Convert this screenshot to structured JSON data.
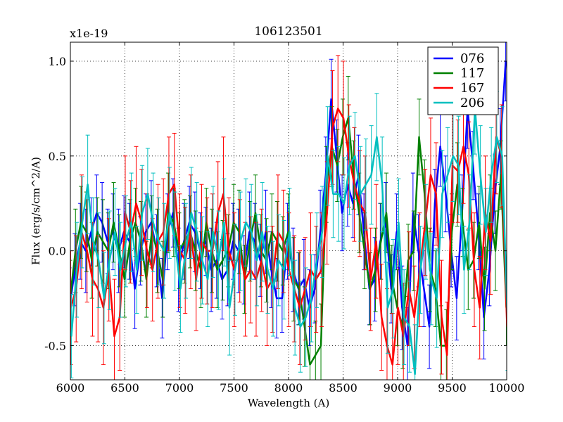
{
  "chart_data": {
    "type": "line",
    "title": "106123501",
    "xlabel": "Wavelength (A)",
    "ylabel": "Flux (erg/s/cm^2/A)",
    "y_multiplier": "x1e-19",
    "xlim": [
      6000,
      10000
    ],
    "ylim": [
      -0.68,
      1.1
    ],
    "x_ticks": [
      6000,
      6500,
      7000,
      7500,
      8000,
      8500,
      9000,
      9500,
      10000
    ],
    "x_tick_labels": [
      "6000",
      "6500",
      "7000",
      "7500",
      "8000",
      "8500",
      "9000",
      "9500",
      "10000"
    ],
    "y_ticks": [
      -0.5,
      0.0,
      0.5,
      1.0
    ],
    "y_tick_labels": [
      "-0.5",
      "0.0",
      "0.5",
      "1.0"
    ],
    "grid": true,
    "legend_position": "top-right",
    "x_start": 6000,
    "x_step": 50,
    "series": [
      {
        "name": "076",
        "color": "#0000ff",
        "errors": [
          0.21,
          0.19,
          0.2,
          0.22,
          0.18,
          0.2,
          0.21,
          0.17,
          0.2,
          0.22,
          0.19,
          0.2,
          0.21,
          0.18,
          0.2,
          0.22,
          0.19,
          0.21,
          0.2,
          0.18,
          0.22,
          0.2,
          0.19,
          0.21,
          0.2,
          0.18,
          0.22,
          0.2,
          0.21,
          0.19,
          0.2,
          0.22,
          0.18,
          0.21,
          0.2,
          0.19,
          0.22,
          0.2,
          0.21,
          0.18,
          0.2,
          0.22,
          0.19,
          0.21,
          0.2,
          0.18,
          0.22,
          0.2,
          0.21,
          0.19,
          0.2,
          0.22,
          0.18,
          0.21,
          0.2,
          0.19,
          0.22,
          0.2,
          0.21,
          0.18,
          0.2,
          0.22,
          0.2,
          0.21,
          0.19,
          0.2,
          0.22,
          0.18,
          0.21,
          0.2,
          0.19,
          0.22,
          0.2,
          0.21,
          0.18,
          0.2,
          0.22,
          0.19,
          0.21,
          0.2,
          0.21
        ],
        "values": [
          -0.3,
          -0.1,
          0.05,
          0.0,
          0.1,
          0.2,
          0.15,
          0.05,
          0.1,
          0.0,
          0.1,
          0.05,
          -0.2,
          0.0,
          0.1,
          0.15,
          0.0,
          -0.25,
          0.1,
          0.2,
          -0.1,
          0.05,
          0.15,
          0.1,
          0.0,
          0.05,
          -0.1,
          -0.05,
          -0.15,
          -0.1,
          0.05,
          0.0,
          -0.1,
          0.1,
          0.05,
          -0.05,
          0.1,
          -0.1,
          -0.25,
          -0.25,
          0.05,
          -0.1,
          -0.2,
          -0.15,
          -0.3,
          -0.2,
          0.1,
          0.4,
          0.8,
          0.5,
          0.2,
          0.35,
          0.25,
          0.4,
          0.1,
          -0.2,
          -0.15,
          0.05,
          0.15,
          -0.2,
          0.1,
          -0.3,
          -0.5,
          0.2,
          0.0,
          -0.2,
          -0.4,
          0.25,
          0.55,
          0.3,
          0.0,
          -0.25,
          0.2,
          0.75,
          0.45,
          0.1,
          -0.35,
          -0.1,
          0.3,
          0.55,
          1.0
        ]
      },
      {
        "name": "117",
        "color": "#008000",
        "errors": [
          0.2,
          0.22,
          0.19,
          0.21,
          0.2,
          0.18,
          0.22,
          0.2,
          0.21,
          0.19,
          0.2,
          0.22,
          0.18,
          0.21,
          0.2,
          0.19,
          0.22,
          0.2,
          0.21,
          0.18,
          0.2,
          0.22,
          0.19,
          0.21,
          0.2,
          0.18,
          0.22,
          0.2,
          0.21,
          0.19,
          0.2,
          0.22,
          0.18,
          0.21,
          0.2,
          0.19,
          0.22,
          0.2,
          0.21,
          0.18,
          0.2,
          0.22,
          0.19,
          0.21,
          0.2,
          0.18,
          0.22,
          0.2,
          0.21,
          0.19,
          0.2,
          0.22,
          0.18,
          0.21,
          0.2,
          0.19,
          0.22,
          0.2,
          0.21,
          0.18,
          0.2,
          0.22,
          0.19,
          0.21,
          0.2,
          0.18,
          0.22,
          0.2,
          0.21,
          0.19,
          0.2,
          0.22,
          0.18,
          0.21,
          0.2,
          0.19,
          0.22,
          0.2,
          0.21,
          0.18,
          0.2
        ],
        "values": [
          -0.25,
          0.0,
          0.15,
          0.1,
          -0.05,
          0.1,
          0.05,
          0.0,
          0.15,
          0.0,
          -0.15,
          0.05,
          0.15,
          0.05,
          -0.15,
          0.1,
          0.0,
          -0.15,
          0.2,
          0.15,
          0.0,
          0.05,
          0.1,
          0.0,
          -0.1,
          0.15,
          0.0,
          -0.1,
          -0.05,
          0.0,
          0.15,
          0.1,
          -0.15,
          0.05,
          0.2,
          0.0,
          -0.05,
          0.1,
          0.05,
          0.0,
          0.1,
          -0.15,
          -0.2,
          -0.4,
          -0.6,
          -0.55,
          -0.5,
          0.35,
          0.55,
          0.45,
          0.6,
          0.7,
          0.4,
          0.2,
          0.0,
          -0.2,
          -0.1,
          0.05,
          0.2,
          -0.15,
          -0.3,
          -0.4,
          -0.05,
          0.0,
          0.6,
          0.3,
          -0.1,
          -0.2,
          -0.5,
          -0.5,
          0.1,
          0.35,
          0.15,
          -0.1,
          -0.05,
          0.15,
          -0.2,
          0.2,
          0.0,
          0.4,
          -0.3
        ]
      },
      {
        "name": "167",
        "color": "#ff0000",
        "errors": [
          0.3,
          0.28,
          0.3,
          0.27,
          0.3,
          0.28,
          0.3,
          0.27,
          0.3,
          0.28,
          0.3,
          0.27,
          0.3,
          0.28,
          0.3,
          0.27,
          0.3,
          0.28,
          0.3,
          0.27,
          0.3,
          0.28,
          0.3,
          0.27,
          0.3,
          0.28,
          0.3,
          0.27,
          0.3,
          0.28,
          0.3,
          0.27,
          0.3,
          0.28,
          0.3,
          0.27,
          0.3,
          0.28,
          0.3,
          0.27,
          0.3,
          0.28,
          0.3,
          0.27,
          0.3,
          0.28,
          0.3,
          0.27,
          0.3,
          0.28,
          0.3,
          0.27,
          0.3,
          0.28,
          0.3,
          0.27,
          0.3,
          0.28,
          0.3,
          0.27,
          0.3,
          0.28,
          0.3,
          0.27,
          0.3,
          0.28,
          0.3,
          0.27,
          0.3,
          0.28,
          0.3,
          0.27,
          0.3,
          0.28,
          0.3,
          0.27,
          0.3,
          0.28,
          0.3,
          0.27,
          0.3
        ],
        "values": [
          -0.3,
          -0.2,
          0.1,
          0.0,
          -0.15,
          -0.2,
          -0.3,
          -0.1,
          -0.45,
          -0.35,
          0.2,
          0.1,
          0.25,
          0.15,
          0.0,
          -0.1,
          0.05,
          0.1,
          0.3,
          0.35,
          0.0,
          -0.05,
          0.1,
          -0.15,
          0.05,
          0.0,
          0.0,
          0.2,
          0.3,
          0.0,
          -0.1,
          0.0,
          -0.15,
          -0.1,
          -0.15,
          -0.05,
          -0.2,
          -0.15,
          0.1,
          0.05,
          -0.1,
          -0.2,
          -0.3,
          -0.2,
          -0.1,
          -0.15,
          -0.1,
          0.2,
          0.65,
          0.75,
          0.7,
          0.5,
          0.35,
          0.25,
          0.2,
          -0.15,
          0.05,
          -0.35,
          -0.5,
          -0.6,
          -0.3,
          -0.45,
          -0.2,
          -0.35,
          -0.1,
          0.15,
          0.4,
          0.3,
          -0.35,
          -0.55,
          0.45,
          0.42,
          0.55,
          0.4,
          -0.1,
          -0.3,
          0.2,
          0.05,
          0.6,
          0.5,
          -0.4
        ]
      },
      {
        "name": "206",
        "color": "#00bfbf",
        "errors": [
          0.22,
          0.25,
          0.24,
          0.26,
          0.23,
          0.25,
          0.24,
          0.26,
          0.23,
          0.25,
          0.24,
          0.26,
          0.23,
          0.25,
          0.24,
          0.26,
          0.23,
          0.25,
          0.24,
          0.26,
          0.23,
          0.25,
          0.24,
          0.26,
          0.23,
          0.25,
          0.24,
          0.26,
          0.23,
          0.25,
          0.24,
          0.26,
          0.23,
          0.25,
          0.24,
          0.26,
          0.23,
          0.25,
          0.24,
          0.26,
          0.23,
          0.25,
          0.24,
          0.26,
          0.23,
          0.25,
          0.24,
          0.26,
          0.23,
          0.25,
          0.24,
          0.26,
          0.23,
          0.25,
          0.24,
          0.26,
          0.23,
          0.25,
          0.24,
          0.26,
          0.23,
          0.25,
          0.24,
          0.26,
          0.23,
          0.25,
          0.24,
          0.26,
          0.23,
          0.25,
          0.24,
          0.26,
          0.23,
          0.25,
          0.24,
          0.26,
          0.23,
          0.25,
          0.24,
          0.26,
          0.23
        ],
        "values": [
          -0.45,
          -0.1,
          0.15,
          0.35,
          0.05,
          -0.05,
          -0.25,
          -0.05,
          0.1,
          -0.1,
          0.05,
          0.15,
          -0.1,
          0.2,
          0.3,
          0.15,
          0.05,
          0.0,
          0.2,
          0.05,
          -0.2,
          0.0,
          0.2,
          0.1,
          -0.05,
          -0.15,
          0.1,
          -0.05,
          0.15,
          -0.3,
          -0.1,
          0.05,
          0.15,
          0.1,
          -0.05,
          0.1,
          -0.1,
          -0.2,
          -0.05,
          -0.1,
          0.1,
          -0.3,
          -0.4,
          -0.35,
          -0.25,
          -0.05,
          0.1,
          0.5,
          0.3,
          0.3,
          0.25,
          0.45,
          0.5,
          0.3,
          0.35,
          0.4,
          0.6,
          0.35,
          -0.3,
          -0.2,
          0.15,
          -0.35,
          -0.4,
          -0.65,
          -0.1,
          0.1,
          -0.15,
          -0.25,
          0.3,
          0.4,
          0.5,
          0.45,
          -0.1,
          0.15,
          0.75,
          0.4,
          0.1,
          0.4,
          0.6,
          0.5,
          -0.4
        ]
      }
    ]
  }
}
